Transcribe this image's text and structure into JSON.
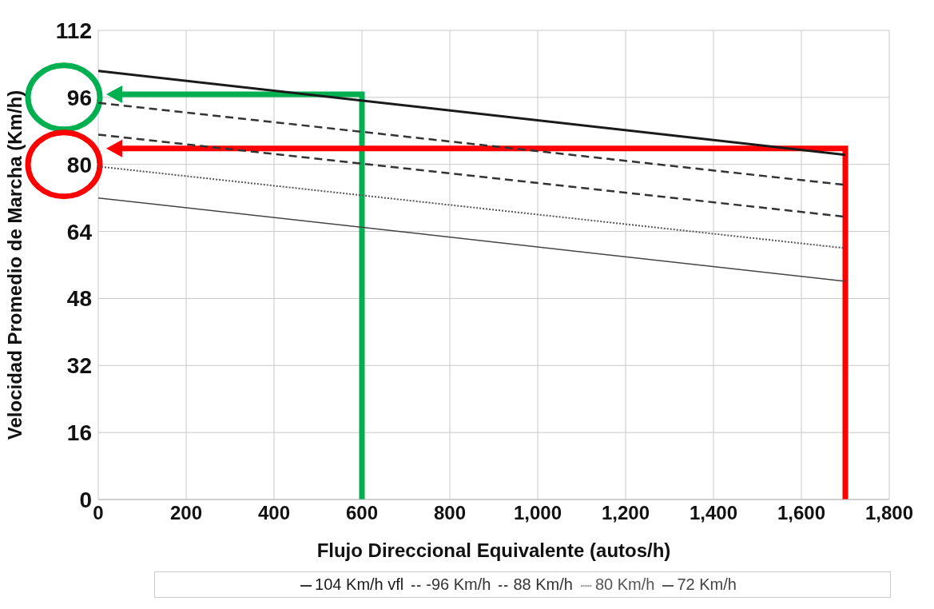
{
  "chart_data": {
    "type": "line",
    "xlabel": "Flujo Direccional Equivalente (autos/h)",
    "ylabel": "Velocidad Promedio de Marcha (Km/h)",
    "x": [
      0,
      1700
    ],
    "series": [
      {
        "name": "104 Km/h vfl",
        "color": "#1a1a1a",
        "values": [
          102.3,
          82.3
        ],
        "line_style": "solid"
      },
      {
        "name": "-96 Km/h",
        "color": "#333333",
        "values": [
          94.7,
          75.1
        ],
        "line_style": "dashed"
      },
      {
        "name": "88 Km/h",
        "color": "#333333",
        "values": [
          87.1,
          67.5
        ],
        "line_style": "dashed"
      },
      {
        "name": "80 Km/h",
        "color": "#555555",
        "values": [
          79.5,
          60
        ],
        "line_style": "dotted"
      },
      {
        "name": "72 Km/h",
        "color": "#444444",
        "values": [
          72,
          52.1
        ],
        "line_style": "solid"
      }
    ],
    "xlim": [
      0,
      1800
    ],
    "xticks": [
      0,
      200,
      400,
      600,
      800,
      {
        "value": 1000,
        "label": "1,000"
      },
      {
        "value": 1200,
        "label": "1,200"
      },
      {
        "value": 1400,
        "label": "1,400"
      },
      {
        "value": 1600,
        "label": "1,600"
      },
      {
        "value": 1800,
        "label": "1,800"
      }
    ],
    "ylim": [
      0,
      112
    ],
    "yticks": [
      0,
      16,
      32,
      48,
      64,
      80,
      96,
      112
    ],
    "grid": true,
    "legend": "bottom",
    "marker": "none"
  }
}
